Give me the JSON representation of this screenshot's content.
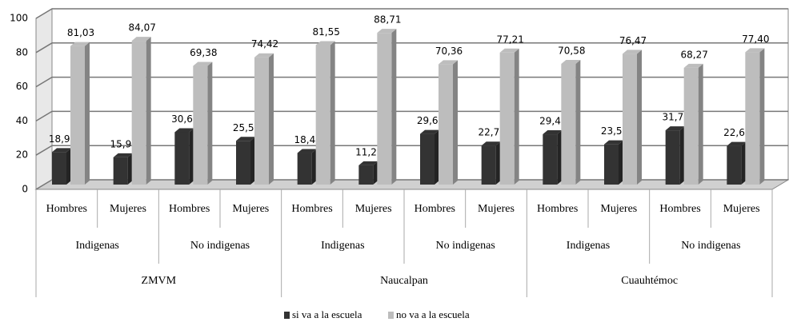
{
  "chart_data": {
    "type": "bar3d",
    "categories": [
      "Hombres",
      "Mujeres",
      "Hombres",
      "Mujeres",
      "Hombres",
      "Mujeres",
      "Hombres",
      "Mujeres",
      "Hombres",
      "Mujeres",
      "Hombres",
      "Mujeres"
    ],
    "subgroups": [
      "Indigenas",
      "No indigenas",
      "Indigenas",
      "No indigenas",
      "Indigenas",
      "No indigenas"
    ],
    "groups": [
      "ZMVM",
      "Naucalpan",
      "Cuauhtémoc"
    ],
    "series": [
      {
        "name": "si va a la escuela",
        "color": "#333333",
        "values": [
          18.97,
          15.93,
          30.62,
          25.58,
          18.45,
          11.29,
          29.64,
          22.79,
          29.42,
          23.53,
          31.73,
          22.6
        ],
        "value_labels": [
          "18,97",
          "15,93",
          "30,62",
          "25,58",
          "18,45",
          "11,29",
          "29,64",
          "22,79",
          "29,42",
          "23,53",
          "31,73",
          "22,60"
        ]
      },
      {
        "name": "no va a la escuela",
        "color": "#bdbdbd",
        "values": [
          81.03,
          84.07,
          69.38,
          74.42,
          81.55,
          88.71,
          70.36,
          77.21,
          70.58,
          76.47,
          68.27,
          77.4
        ],
        "value_labels": [
          "81,03",
          "84,07",
          "69,38",
          "74,42",
          "81,55",
          "88,71",
          "70,36",
          "77,21",
          "70,58",
          "76,47",
          "68,27",
          "77,40"
        ]
      }
    ],
    "ylim": [
      0,
      100
    ],
    "yticks": [
      0,
      20,
      40,
      60,
      80,
      100
    ],
    "grid": true,
    "legend": "bottom"
  }
}
